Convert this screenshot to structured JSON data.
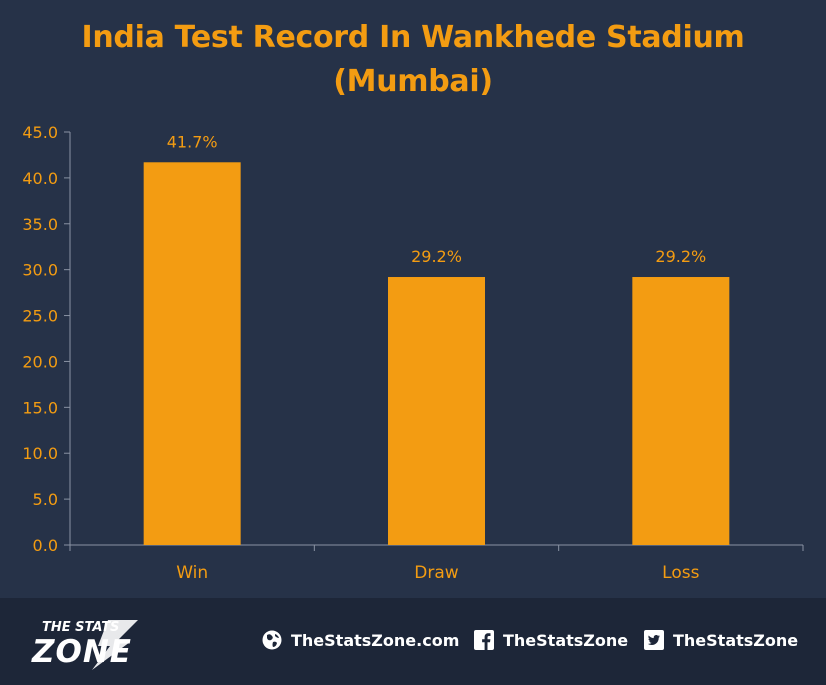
{
  "chart_data": {
    "type": "bar",
    "title_lines": [
      "India Test Record In Wankhede Stadium",
      "(Mumbai)"
    ],
    "categories": [
      "Win",
      "Draw",
      "Loss"
    ],
    "values": [
      41.7,
      29.2,
      29.2
    ],
    "data_labels": [
      "41.7%",
      "29.2%",
      "29.2%"
    ],
    "yticks": [
      "0.0",
      "5.0",
      "10.0",
      "15.0",
      "20.0",
      "25.0",
      "30.0",
      "35.0",
      "40.0",
      "45.0"
    ],
    "ylim": [
      0,
      45
    ],
    "grid": false,
    "colors": {
      "bar": "#F39C12",
      "background": "#263248",
      "axis": "#8a93a3",
      "text": "#F39C12"
    }
  },
  "footer": {
    "logo_top": "THE STATS",
    "logo_bottom": "ZONE",
    "website": "TheStatsZone.com",
    "facebook": "TheStatsZone",
    "twitter": "TheStatsZone",
    "icons": [
      "globe-icon",
      "facebook-icon",
      "twitter-icon"
    ],
    "colors": {
      "background": "#1d2638",
      "text": "#ffffff"
    }
  }
}
